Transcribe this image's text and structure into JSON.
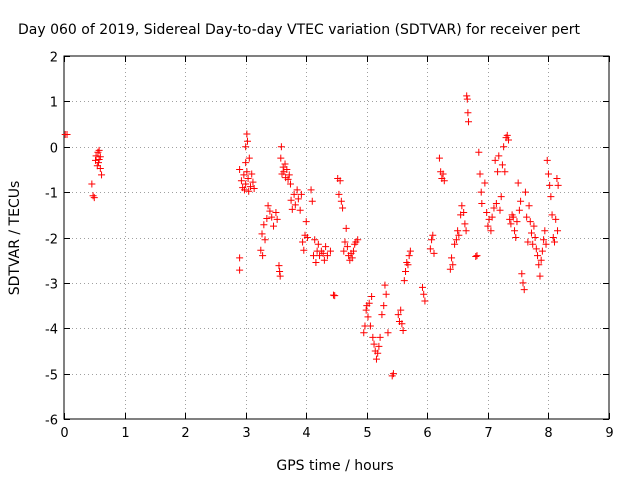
{
  "chart_data": {
    "type": "scatter",
    "title": "Day 060 of 2019, Sidereal Day-to-day VTEC variation (SDTVAR) for receiver pert",
    "xlabel": "GPS time / hours",
    "ylabel": "SDTVAR / TECUs",
    "xlim": [
      0,
      9
    ],
    "ylim": [
      -6,
      2
    ],
    "xticks": [
      0,
      1,
      2,
      3,
      4,
      5,
      6,
      7,
      8,
      9
    ],
    "yticks": [
      -6,
      -5,
      -4,
      -3,
      -2,
      -1,
      0,
      1,
      2
    ],
    "grid": true,
    "marker": "plus",
    "marker_color": "#ff0000",
    "series": [
      {
        "name": "SDTVAR",
        "points": [
          [
            0.02,
            0.27
          ],
          [
            0.05,
            0.27
          ],
          [
            0.46,
            -0.82
          ],
          [
            0.48,
            -1.08
          ],
          [
            0.5,
            -1.12
          ],
          [
            0.52,
            -0.3
          ],
          [
            0.53,
            -0.2
          ],
          [
            0.55,
            -0.42
          ],
          [
            0.56,
            -0.12
          ],
          [
            0.57,
            -0.35
          ],
          [
            0.58,
            -0.28
          ],
          [
            0.6,
            -0.22
          ],
          [
            0.6,
            -0.48
          ],
          [
            0.62,
            -0.62
          ],
          [
            0.58,
            -0.08
          ],
          [
            2.9,
            -2.45
          ],
          [
            2.9,
            -2.72
          ],
          [
            2.9,
            -0.5
          ],
          [
            2.93,
            -0.75
          ],
          [
            2.95,
            -0.9
          ],
          [
            2.97,
            -0.62
          ],
          [
            2.98,
            -0.95
          ],
          [
            3.0,
            0.0
          ],
          [
            3.0,
            -0.82
          ],
          [
            3.02,
            0.28
          ],
          [
            3.03,
            0.12
          ],
          [
            3.04,
            -0.7
          ],
          [
            3.05,
            -0.98
          ],
          [
            3.06,
            -0.25
          ],
          [
            3.08,
            -0.88
          ],
          [
            3.1,
            -0.6
          ],
          [
            3.12,
            -0.78
          ],
          [
            3.14,
            -0.92
          ],
          [
            3.0,
            -0.35
          ],
          [
            3.02,
            -0.55
          ],
          [
            3.25,
            -2.28
          ],
          [
            3.27,
            -1.92
          ],
          [
            3.28,
            -2.4
          ],
          [
            3.3,
            -1.72
          ],
          [
            3.32,
            -2.05
          ],
          [
            3.35,
            -1.58
          ],
          [
            3.37,
            -1.3
          ],
          [
            3.4,
            -1.42
          ],
          [
            3.43,
            -1.55
          ],
          [
            3.46,
            -1.75
          ],
          [
            3.5,
            -1.45
          ],
          [
            3.52,
            -1.6
          ],
          [
            3.55,
            -2.62
          ],
          [
            3.56,
            -2.75
          ],
          [
            3.57,
            -2.85
          ],
          [
            3.58,
            -0.25
          ],
          [
            3.59,
            0.0
          ],
          [
            3.6,
            -0.6
          ],
          [
            3.62,
            -0.45
          ],
          [
            3.63,
            -0.55
          ],
          [
            3.65,
            -0.38
          ],
          [
            3.66,
            -0.68
          ],
          [
            3.68,
            -0.5
          ],
          [
            3.7,
            -0.72
          ],
          [
            3.72,
            -0.62
          ],
          [
            3.74,
            -0.82
          ],
          [
            3.75,
            -1.18
          ],
          [
            3.77,
            -1.38
          ],
          [
            3.8,
            -1.05
          ],
          [
            3.82,
            -1.28
          ],
          [
            3.85,
            -0.95
          ],
          [
            3.87,
            -1.15
          ],
          [
            3.9,
            -1.4
          ],
          [
            3.92,
            -1.05
          ],
          [
            3.94,
            -2.1
          ],
          [
            3.96,
            -2.28
          ],
          [
            3.98,
            -1.95
          ],
          [
            4.0,
            -1.65
          ],
          [
            4.02,
            -2.0
          ],
          [
            4.08,
            -0.95
          ],
          [
            4.1,
            -1.2
          ],
          [
            4.12,
            -2.4
          ],
          [
            4.14,
            -2.05
          ],
          [
            4.16,
            -2.55
          ],
          [
            4.18,
            -2.3
          ],
          [
            4.2,
            -2.15
          ],
          [
            4.22,
            -2.4
          ],
          [
            4.25,
            -2.3
          ],
          [
            4.28,
            -2.35
          ],
          [
            4.3,
            -2.5
          ],
          [
            4.32,
            -2.2
          ],
          [
            4.35,
            -2.4
          ],
          [
            4.4,
            -2.3
          ],
          [
            4.45,
            -3.27
          ],
          [
            4.47,
            -3.28
          ],
          [
            4.52,
            -0.7
          ],
          [
            4.54,
            -1.05
          ],
          [
            4.56,
            -0.75
          ],
          [
            4.58,
            -1.2
          ],
          [
            4.6,
            -1.35
          ],
          [
            4.62,
            -2.3
          ],
          [
            4.64,
            -2.1
          ],
          [
            4.66,
            -1.8
          ],
          [
            4.68,
            -2.2
          ],
          [
            4.7,
            -2.4
          ],
          [
            4.72,
            -2.5
          ],
          [
            4.74,
            -2.35
          ],
          [
            4.76,
            -2.45
          ],
          [
            4.78,
            -2.3
          ],
          [
            4.8,
            -2.15
          ],
          [
            4.82,
            -2.1
          ],
          [
            4.85,
            -2.05
          ],
          [
            4.95,
            -4.1
          ],
          [
            4.97,
            -3.95
          ],
          [
            4.99,
            -3.6
          ],
          [
            5.0,
            -3.5
          ],
          [
            5.02,
            -3.75
          ],
          [
            5.04,
            -3.45
          ],
          [
            5.06,
            -3.95
          ],
          [
            5.08,
            -3.3
          ],
          [
            5.1,
            -4.2
          ],
          [
            5.12,
            -4.35
          ],
          [
            5.14,
            -4.5
          ],
          [
            5.16,
            -4.68
          ],
          [
            5.18,
            -4.55
          ],
          [
            5.2,
            -4.4
          ],
          [
            5.22,
            -4.2
          ],
          [
            5.25,
            -3.7
          ],
          [
            5.28,
            -3.5
          ],
          [
            5.3,
            -3.05
          ],
          [
            5.32,
            -3.25
          ],
          [
            5.35,
            -4.1
          ],
          [
            5.42,
            -5.05
          ],
          [
            5.44,
            -5.0
          ],
          [
            5.52,
            -3.7
          ],
          [
            5.54,
            -3.85
          ],
          [
            5.56,
            -3.6
          ],
          [
            5.58,
            -3.9
          ],
          [
            5.6,
            -4.05
          ],
          [
            5.62,
            -2.95
          ],
          [
            5.64,
            -2.75
          ],
          [
            5.66,
            -2.55
          ],
          [
            5.68,
            -2.6
          ],
          [
            5.7,
            -2.4
          ],
          [
            5.72,
            -2.3
          ],
          [
            5.92,
            -3.1
          ],
          [
            5.94,
            -3.25
          ],
          [
            5.96,
            -3.4
          ],
          [
            6.05,
            -2.25
          ],
          [
            6.07,
            -2.05
          ],
          [
            6.09,
            -1.95
          ],
          [
            6.11,
            -2.35
          ],
          [
            6.2,
            -0.25
          ],
          [
            6.22,
            -0.55
          ],
          [
            6.24,
            -0.7
          ],
          [
            6.26,
            -0.6
          ],
          [
            6.28,
            -0.75
          ],
          [
            6.38,
            -2.7
          ],
          [
            6.4,
            -2.45
          ],
          [
            6.42,
            -2.6
          ],
          [
            6.45,
            -2.15
          ],
          [
            6.48,
            -2.05
          ],
          [
            6.5,
            -1.85
          ],
          [
            6.52,
            -1.95
          ],
          [
            6.55,
            -1.5
          ],
          [
            6.57,
            -1.3
          ],
          [
            6.6,
            -1.45
          ],
          [
            6.62,
            -1.7
          ],
          [
            6.64,
            -1.85
          ],
          [
            6.65,
            1.12
          ],
          [
            6.66,
            1.05
          ],
          [
            6.67,
            0.75
          ],
          [
            6.68,
            0.55
          ],
          [
            6.8,
            -2.42
          ],
          [
            6.82,
            -2.4
          ],
          [
            6.85,
            -0.12
          ],
          [
            6.87,
            -0.6
          ],
          [
            6.89,
            -1.0
          ],
          [
            6.9,
            -1.25
          ],
          [
            6.95,
            -0.8
          ],
          [
            6.98,
            -1.45
          ],
          [
            7.0,
            -1.75
          ],
          [
            7.02,
            -1.6
          ],
          [
            7.05,
            -1.85
          ],
          [
            7.07,
            -1.55
          ],
          [
            7.1,
            -1.35
          ],
          [
            7.12,
            -0.3
          ],
          [
            7.14,
            -1.25
          ],
          [
            7.16,
            -0.55
          ],
          [
            7.18,
            -0.2
          ],
          [
            7.2,
            -1.4
          ],
          [
            7.22,
            -1.1
          ],
          [
            7.24,
            -0.4
          ],
          [
            7.26,
            0.0
          ],
          [
            7.28,
            -0.55
          ],
          [
            7.3,
            0.2
          ],
          [
            7.32,
            0.25
          ],
          [
            7.34,
            0.15
          ],
          [
            7.36,
            -1.6
          ],
          [
            7.38,
            -1.7
          ],
          [
            7.4,
            -1.5
          ],
          [
            7.42,
            -1.55
          ],
          [
            7.44,
            -1.85
          ],
          [
            7.46,
            -2.0
          ],
          [
            7.48,
            -1.65
          ],
          [
            7.5,
            -0.8
          ],
          [
            7.52,
            -1.4
          ],
          [
            7.54,
            -1.2
          ],
          [
            7.56,
            -2.8
          ],
          [
            7.58,
            -3.0
          ],
          [
            7.6,
            -3.15
          ],
          [
            7.62,
            -1.0
          ],
          [
            7.64,
            -1.55
          ],
          [
            7.66,
            -2.1
          ],
          [
            7.68,
            -1.3
          ],
          [
            7.7,
            -1.65
          ],
          [
            7.72,
            -1.9
          ],
          [
            7.74,
            -2.15
          ],
          [
            7.76,
            -1.75
          ],
          [
            7.78,
            -2.0
          ],
          [
            7.8,
            -2.25
          ],
          [
            7.82,
            -2.4
          ],
          [
            7.84,
            -2.6
          ],
          [
            7.86,
            -2.85
          ],
          [
            7.88,
            -2.5
          ],
          [
            7.9,
            -2.3
          ],
          [
            7.92,
            -2.05
          ],
          [
            7.94,
            -1.85
          ],
          [
            7.96,
            -2.15
          ],
          [
            7.98,
            -0.3
          ],
          [
            8.0,
            -0.6
          ],
          [
            8.02,
            -0.85
          ],
          [
            8.04,
            -1.1
          ],
          [
            8.06,
            -1.5
          ],
          [
            8.08,
            -2.0
          ],
          [
            8.1,
            -2.1
          ],
          [
            8.12,
            -1.6
          ],
          [
            8.14,
            -0.7
          ],
          [
            8.16,
            -0.85
          ],
          [
            8.15,
            -1.85
          ]
        ]
      }
    ]
  }
}
